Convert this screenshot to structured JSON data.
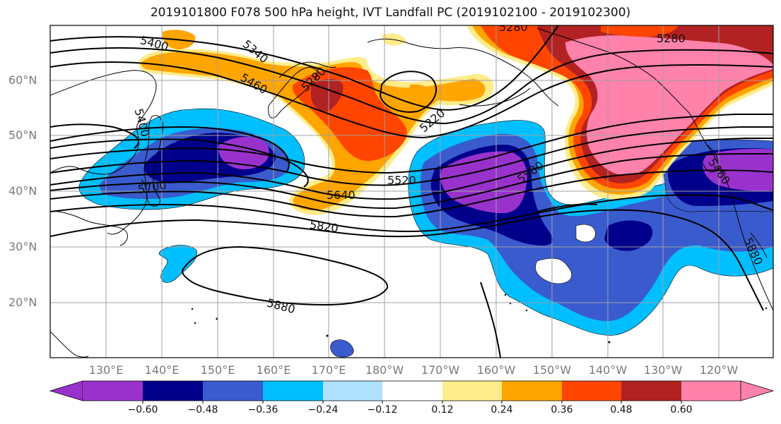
{
  "title": "2019101800 F078 500 hPa height, IVT Landfall PC (2019102100 - 2019102300)",
  "latitude_labels": [
    "60°N",
    "50°N",
    "40°N",
    "30°N",
    "20°N"
  ],
  "longitude_labels": [
    "130°E",
    "140°E",
    "150°E",
    "160°E",
    "170°E",
    "180°W",
    "170°W",
    "160°W",
    "150°W",
    "140°W",
    "130°W",
    "120°W"
  ],
  "contour_labels": [
    "5400",
    "5340",
    "5460",
    "5280",
    "5220",
    "5400",
    "5700",
    "5640",
    "5520",
    "5580",
    "5820",
    "5880",
    "5280",
    "5280",
    "5460",
    "5880"
  ],
  "colorbar": {
    "tick_labels": [
      "−0.60",
      "−0.48",
      "−0.36",
      "−0.24",
      "−0.12",
      "0.12",
      "0.24",
      "0.36",
      "0.48",
      "0.60"
    ],
    "colors": [
      "#9932cc",
      "#00008b",
      "#3a5bcd",
      "#00bfff",
      "#b0e2ff",
      "#ffffff",
      "#ffec8b",
      "#ffa500",
      "#ff4500",
      "#b22222",
      "#ff82ab"
    ]
  },
  "palette": {
    "purple": "#9932cc",
    "navy": "#00008b",
    "blue": "#3a5bcd",
    "cyan": "#00bfff",
    "lightblue": "#b0e2ff",
    "yellow": "#ffec8b",
    "orange": "#ffa500",
    "redorange": "#ff4500",
    "firebrick": "#b22222",
    "pink": "#ff82ab"
  }
}
